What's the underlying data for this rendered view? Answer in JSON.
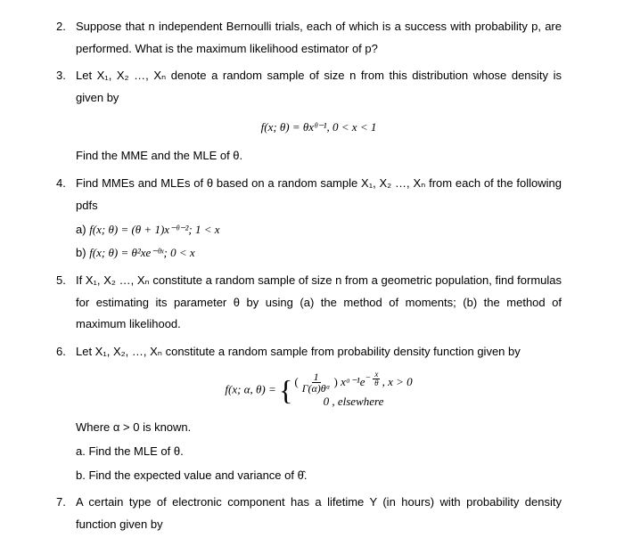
{
  "q2": {
    "num": "2.",
    "text": "Suppose that n independent Bernoulli trials, each of which is a success with probability p, are performed. What is the maximum likelihood estimator of p?"
  },
  "q3": {
    "num": "3.",
    "intro": "Let X₁, X₂ …, Xₙ denote a random sample of size n from this distribution whose density is given by",
    "formula": "f(x; θ) = θxᶿ⁻¹, 0 < x < 1",
    "tail": "Find the MME and the MLE of θ."
  },
  "q4": {
    "num": "4.",
    "intro": "Find MMEs and MLEs of θ based on a random sample  X₁, X₂ …, Xₙ from each of the following pdfs",
    "a_label": "a)",
    "a_formula": "f(x; θ) = (θ + 1)x⁻ᶿ⁻²; 1 < x",
    "b_label": "b)",
    "b_formula": "f(x; θ) = θ²xe⁻ᶿˣ; 0 < x"
  },
  "q5": {
    "num": "5.",
    "text": "If X₁, X₂ …, Xₙ constitute a random sample of size n from a geometric population, find formulas for estimating its parameter θ by using (a) the method of moments; (b) the method of maximum likelihood."
  },
  "q6": {
    "num": "6.",
    "intro": "Let X₁, X₂, …, Xₙ constitute a random sample from probability density function given by",
    "formula_lhs": "f(x; α, θ) = ",
    "piece1_num": "1",
    "piece1_den": "Γ(α)θᵅ",
    "piece1_rest": " xᵅ⁻¹e",
    "piece1_exp_num": "x",
    "piece1_exp_den": "θ",
    "piece1_cond": ",   x > 0",
    "piece2": "0       ,      elsewhere",
    "where": "Where α > 0 is known.",
    "a": "a.  Find the MLE of θ.",
    "b": "b.  Find the expected value and variance of θ̂."
  },
  "q7": {
    "num": "7.",
    "text": "A certain type of electronic component has a lifetime Y (in hours) with probability density function given by"
  }
}
